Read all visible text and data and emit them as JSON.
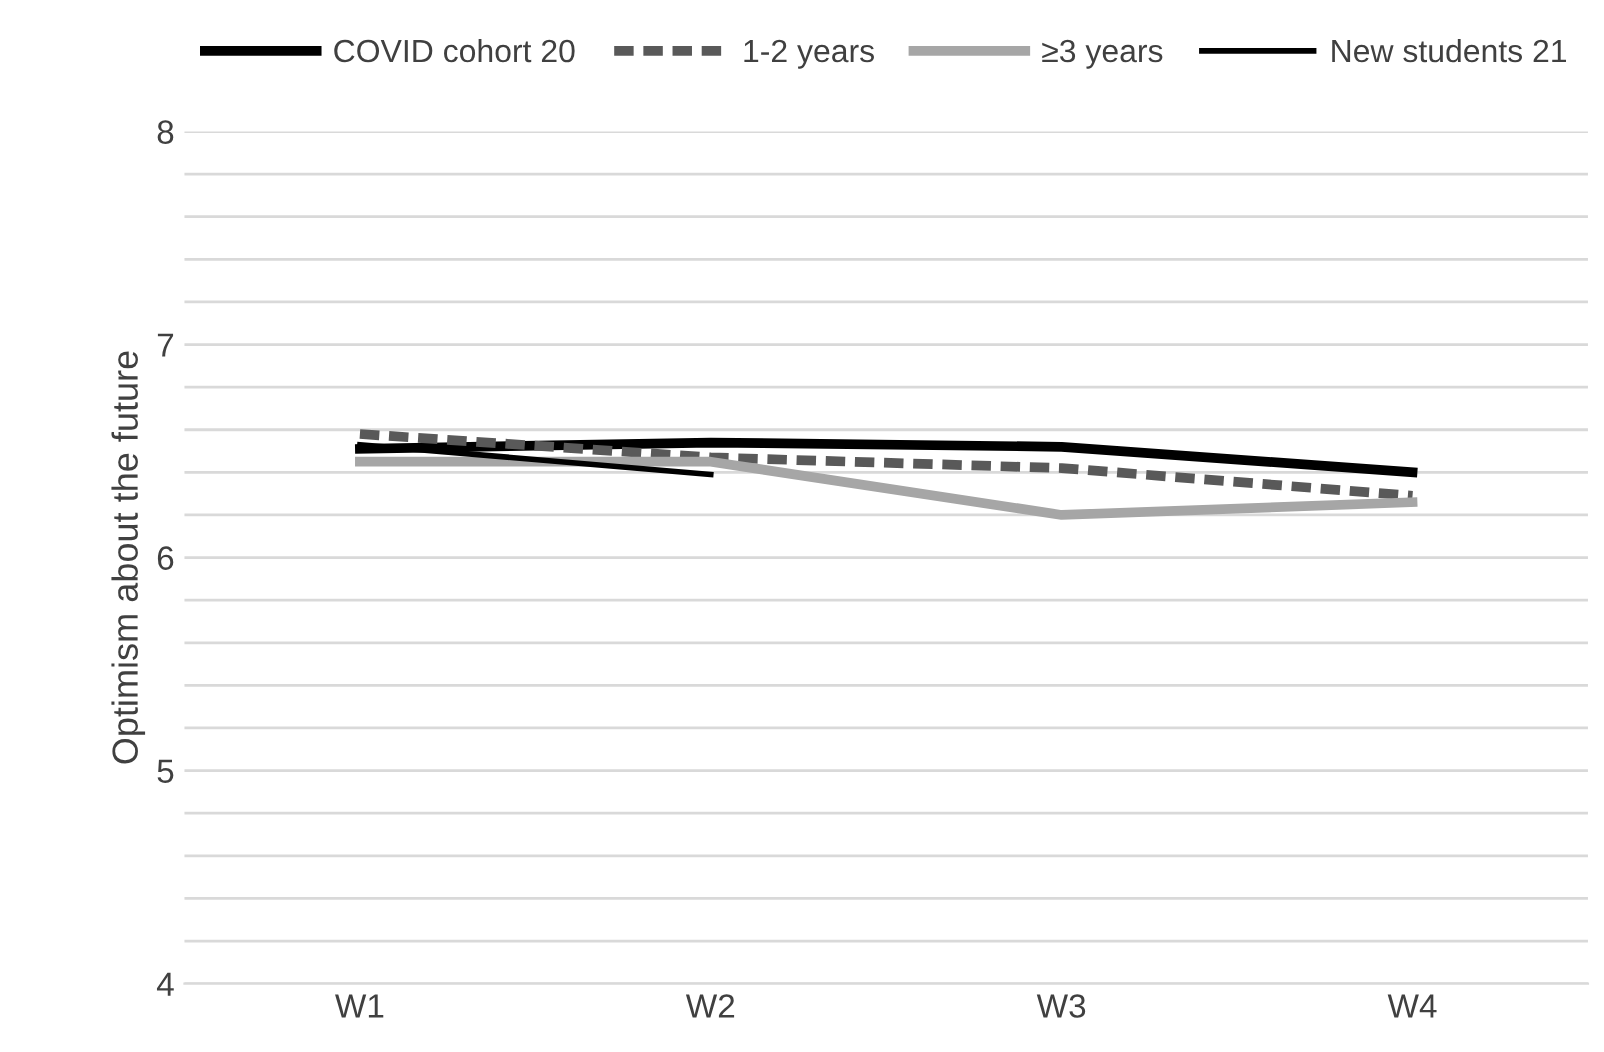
{
  "chart_data": {
    "type": "line",
    "ylabel": "Optimism about the future",
    "categories": [
      "W1",
      "W2",
      "W3",
      "W4"
    ],
    "series": [
      {
        "name": "COVID cohort 20",
        "color": "#000000",
        "line_style": "solid",
        "values": [
          6.51,
          6.54,
          6.52,
          6.4
        ]
      },
      {
        "name": "1-2 years",
        "color": "#595959",
        "line_style": "dashed",
        "values": [
          6.58,
          6.47,
          6.42,
          6.29
        ]
      },
      {
        "name": "≥3 years",
        "color": "#a6a6a6",
        "line_style": "solid",
        "values": [
          6.45,
          6.45,
          6.2,
          6.26
        ]
      },
      {
        "name": "New students 21",
        "color": "#000000",
        "line_style": "solid",
        "values": [
          6.53,
          6.39,
          null,
          null
        ]
      }
    ],
    "ylim": [
      4,
      8
    ],
    "yticks": [
      4,
      {
        "value": 4.2,
        "label": null
      },
      {
        "value": 4.4,
        "label": null
      },
      {
        "value": 4.6,
        "label": null
      },
      {
        "value": 4.8,
        "label": null
      },
      5,
      {
        "value": 5.2,
        "label": null
      },
      {
        "value": 5.4,
        "label": null
      },
      {
        "value": 5.6,
        "label": null
      },
      {
        "value": 5.8,
        "label": null
      },
      6,
      {
        "value": 6.2,
        "label": null
      },
      {
        "value": 6.4,
        "label": null
      },
      {
        "value": 6.6,
        "label": null
      },
      {
        "value": 6.8,
        "label": null
      },
      7,
      {
        "value": 7.2,
        "label": null
      },
      {
        "value": 7.4,
        "label": null
      },
      {
        "value": 7.6,
        "label": null
      },
      {
        "value": 7.8,
        "label": null
      },
      8
    ],
    "grid": "y",
    "legend": "top",
    "marker": "none"
  }
}
